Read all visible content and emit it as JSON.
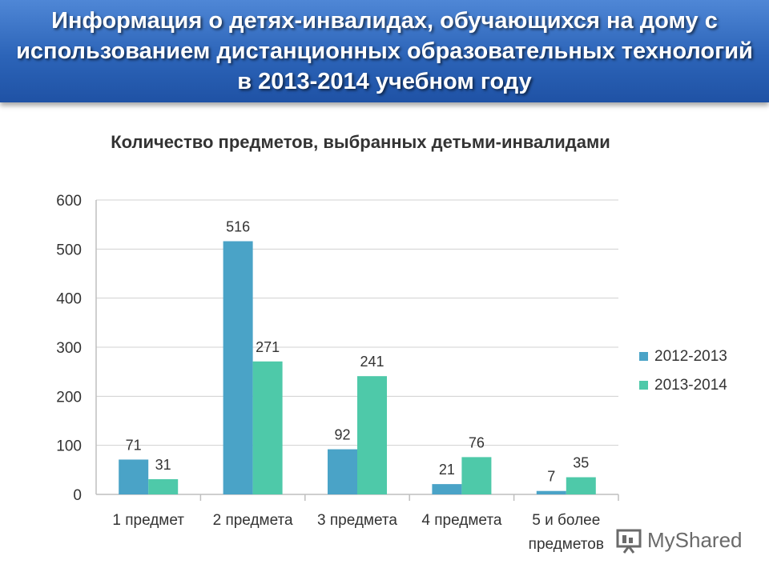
{
  "header": {
    "title": "Информация о детях-инвалидах, обучающихся на дому с использованием дистанционных образовательных технологий в 2013-2014 учебном году"
  },
  "chart_data": {
    "type": "bar",
    "title": "Количество предметов, выбранных детьми-инвалидами",
    "categories": [
      "1 предмет",
      "2 предмета",
      "3 предмета",
      "4 предмета",
      "5 и более предметов"
    ],
    "series": [
      {
        "name": "2012-2013",
        "values": [
          71,
          516,
          92,
          21,
          7
        ],
        "color": "#4aa3c7"
      },
      {
        "name": "2013-2014",
        "values": [
          31,
          271,
          241,
          76,
          35
        ],
        "color": "#4ec9a9"
      }
    ],
    "ylim": [
      0,
      600
    ],
    "yticks": [
      0,
      100,
      200,
      300,
      400,
      500,
      600
    ],
    "grid": true,
    "legend": "right",
    "xlabel": "",
    "ylabel": ""
  },
  "watermark": {
    "text": "MyShared",
    "icon": "presentation-board-icon"
  }
}
